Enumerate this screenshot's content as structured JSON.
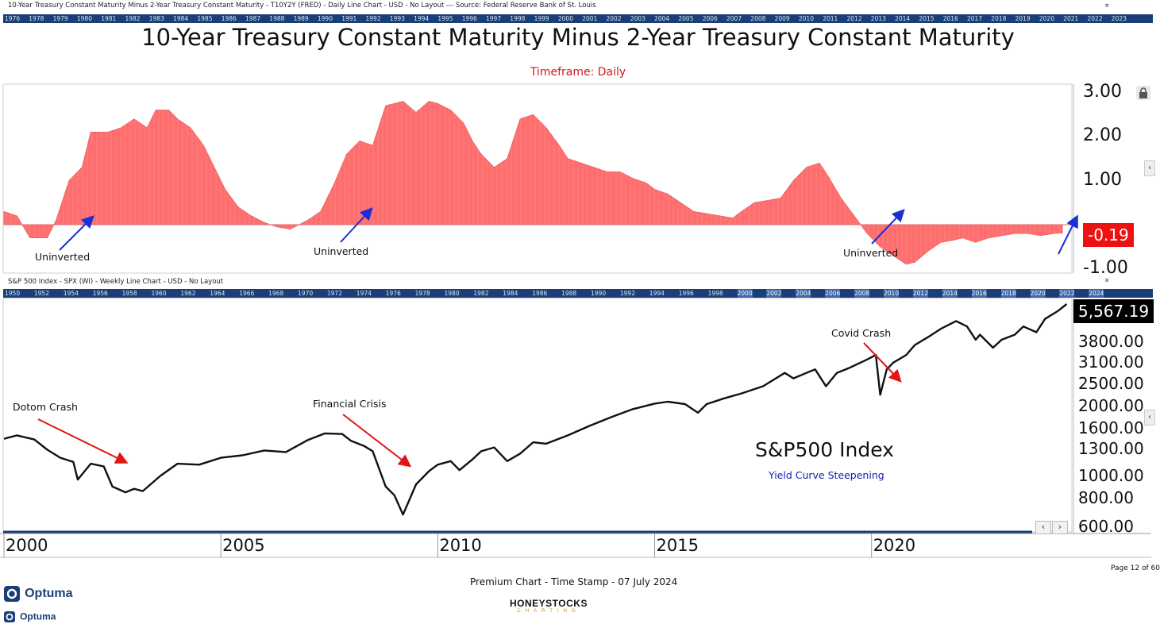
{
  "top_header": "10-Year Treasury Constant Maturity Minus 2-Year Treasury Constant Maturity - T10Y2Y (FRED) - Daily Line Chart - USD - No Layout --- Source: Federal Reserve Bank of St. Louis",
  "top_timebar": [
    "1976",
    "1978",
    "1979",
    "1980",
    "1981",
    "1982",
    "1983",
    "1984",
    "1985",
    "1986",
    "1987",
    "1988",
    "1989",
    "1990",
    "1991",
    "1992",
    "1993",
    "1994",
    "1995",
    "1996",
    "1997",
    "1998",
    "1999",
    "2000",
    "2001",
    "2002",
    "2003",
    "2004",
    "2005",
    "2006",
    "2007",
    "2008",
    "2009",
    "2010",
    "2011",
    "2012",
    "2013",
    "2014",
    "2015",
    "2016",
    "2017",
    "2018",
    "2019",
    "2020",
    "2021",
    "2022",
    "2023"
  ],
  "bottom_header": "S&P 500 Index - SPX (WI) - Weekly Line Chart - USD - No Layout",
  "bottom_timebar": [
    "1950",
    "1952",
    "1954",
    "1956",
    "1958",
    "1960",
    "1962",
    "1964",
    "1966",
    "1968",
    "1970",
    "1972",
    "1974",
    "1976",
    "1978",
    "1980",
    "1982",
    "1984",
    "1986",
    "1988",
    "1990",
    "1992",
    "1994",
    "1996",
    "1998",
    "2000",
    "2002",
    "2004",
    "2006",
    "2008",
    "2010",
    "2012",
    "2014",
    "2016",
    "2018",
    "2020",
    "2022",
    "2024"
  ],
  "chart_data": [
    {
      "type": "area",
      "title": "10-Year Treasury Constant Maturity Minus 2-Year Treasury Constant Maturity",
      "subtitle": "Timeframe: Daily",
      "ylim": [
        -1.1,
        3.2
      ],
      "yticks": [
        "3.00",
        "2.00",
        "1.00",
        "-1.00"
      ],
      "last_value_label": "-0.19",
      "color": "#ff6e6e",
      "accent_color": "#ee1111",
      "x": [
        2000.0,
        2000.3,
        2000.6,
        2001.0,
        2001.2,
        2001.5,
        2001.8,
        2002.0,
        2002.4,
        2002.7,
        2003.0,
        2003.3,
        2003.5,
        2003.8,
        2004.0,
        2004.3,
        2004.6,
        2004.9,
        2005.1,
        2005.4,
        2005.7,
        2006.0,
        2006.3,
        2006.6,
        2007.0,
        2007.3,
        2007.6,
        2007.9,
        2008.2,
        2008.5,
        2008.8,
        2009.0,
        2009.2,
        2009.5,
        2009.8,
        2010.0,
        2010.3,
        2010.6,
        2010.8,
        2011.0,
        2011.3,
        2011.6,
        2011.9,
        2012.2,
        2012.5,
        2012.8,
        2013.0,
        2013.3,
        2013.6,
        2013.9,
        2014.2,
        2014.5,
        2014.8,
        2015.0,
        2015.3,
        2015.6,
        2015.9,
        2016.2,
        2016.5,
        2016.8,
        2017.0,
        2017.3,
        2017.6,
        2017.9,
        2018.2,
        2018.5,
        2018.8,
        2019.0,
        2019.3,
        2019.6,
        2019.9,
        2020.2,
        2020.5,
        2020.8,
        2021.0,
        2021.3,
        2021.6,
        2021.9,
        2022.1,
        2022.4,
        2022.7,
        2023.0,
        2023.3,
        2023.6,
        2023.9,
        2024.2,
        2024.4
      ],
      "values": [
        0.3,
        0.2,
        -0.3,
        -0.3,
        0.1,
        1.0,
        1.3,
        2.1,
        2.1,
        2.2,
        2.4,
        2.2,
        2.6,
        2.6,
        2.4,
        2.2,
        1.8,
        1.2,
        0.8,
        0.4,
        0.2,
        0.05,
        -0.05,
        -0.1,
        0.1,
        0.3,
        0.9,
        1.6,
        1.9,
        1.8,
        2.7,
        2.75,
        2.8,
        2.55,
        2.8,
        2.75,
        2.6,
        2.3,
        1.9,
        1.6,
        1.3,
        1.5,
        2.4,
        2.5,
        2.2,
        1.8,
        1.5,
        1.4,
        1.3,
        1.2,
        1.2,
        1.05,
        0.95,
        0.8,
        0.7,
        0.5,
        0.3,
        0.25,
        0.2,
        0.15,
        0.3,
        0.5,
        0.55,
        0.6,
        1.0,
        1.3,
        1.4,
        1.1,
        0.6,
        0.2,
        -0.2,
        -0.5,
        -0.7,
        -0.9,
        -0.85,
        -0.6,
        -0.4,
        -0.35,
        -0.3,
        -0.4,
        -0.3,
        -0.25,
        -0.2,
        -0.2,
        -0.25,
        -0.2,
        -0.19
      ],
      "annotations": [
        "Uninverted",
        "Uninverted",
        "Uninverted"
      ]
    },
    {
      "type": "line",
      "title": "S&P500 Index",
      "subtitle": "Yield Curve Steepening",
      "scale": "log",
      "ylim": [
        600,
        5800
      ],
      "yticks": [
        "3800.00",
        "3100.00",
        "2500.00",
        "2000.00",
        "1600.00",
        "1300.00",
        "1000.00",
        "800.00",
        "600.00"
      ],
      "last_value_label": "5,567.19",
      "x_range": [
        2000,
        2024.6
      ],
      "xticks": [
        "2000",
        "2005",
        "2010",
        "2015",
        "2020"
      ],
      "x": [
        2000.0,
        2000.3,
        2000.7,
        2001.0,
        2001.3,
        2001.6,
        2001.7,
        2002.0,
        2002.3,
        2002.5,
        2002.8,
        2003.0,
        2003.2,
        2003.6,
        2004.0,
        2004.5,
        2005.0,
        2005.5,
        2006.0,
        2006.5,
        2007.0,
        2007.4,
        2007.8,
        2008.0,
        2008.3,
        2008.5,
        2008.8,
        2009.0,
        2009.2,
        2009.5,
        2009.8,
        2010.0,
        2010.3,
        2010.5,
        2010.8,
        2011.0,
        2011.3,
        2011.6,
        2011.9,
        2012.2,
        2012.5,
        2013.0,
        2013.5,
        2014.0,
        2014.5,
        2015.0,
        2015.3,
        2015.7,
        2016.0,
        2016.2,
        2016.6,
        2017.0,
        2017.5,
        2018.0,
        2018.2,
        2018.5,
        2018.7,
        2018.95,
        2019.2,
        2019.5,
        2019.9,
        2020.1,
        2020.2,
        2020.35,
        2020.5,
        2020.8,
        2021.0,
        2021.3,
        2021.6,
        2021.95,
        2022.2,
        2022.4,
        2022.5,
        2022.8,
        2023.0,
        2023.3,
        2023.5,
        2023.8,
        2024.0,
        2024.3,
        2024.5
      ],
      "values": [
        1450,
        1500,
        1440,
        1300,
        1200,
        1150,
        965,
        1130,
        1100,
        900,
        850,
        880,
        860,
        1000,
        1130,
        1120,
        1200,
        1230,
        1290,
        1270,
        1430,
        1530,
        1520,
        1420,
        1350,
        1280,
        900,
        825,
        680,
        920,
        1050,
        1120,
        1160,
        1060,
        1180,
        1280,
        1330,
        1160,
        1250,
        1400,
        1380,
        1500,
        1650,
        1800,
        1950,
        2060,
        2100,
        2050,
        1880,
        2050,
        2170,
        2280,
        2450,
        2800,
        2650,
        2800,
        2900,
        2450,
        2800,
        2950,
        3200,
        3350,
        2250,
        2900,
        3100,
        3350,
        3700,
        4000,
        4350,
        4700,
        4450,
        3900,
        4100,
        3600,
        3900,
        4100,
        4450,
        4200,
        4800,
        5200,
        5567
      ]
    }
  ],
  "annotations_s": [
    "Dotom Crash",
    "Financial Crisis",
    "Covid Crash"
  ],
  "footer": {
    "page": "Page 12 of 60",
    "timestamp": "Premium Chart - Time Stamp - 07 July 2024",
    "logo_brand": "Optuma",
    "logo_brand2": "Optuma",
    "honey_top": "HONEYSTOCKS",
    "honey_bottom": "CHARTING"
  },
  "icons": [
    "lock-icon",
    "collapse-left-icon",
    "resize-icon",
    "chevron-left-icon",
    "chevron-right-icon"
  ]
}
